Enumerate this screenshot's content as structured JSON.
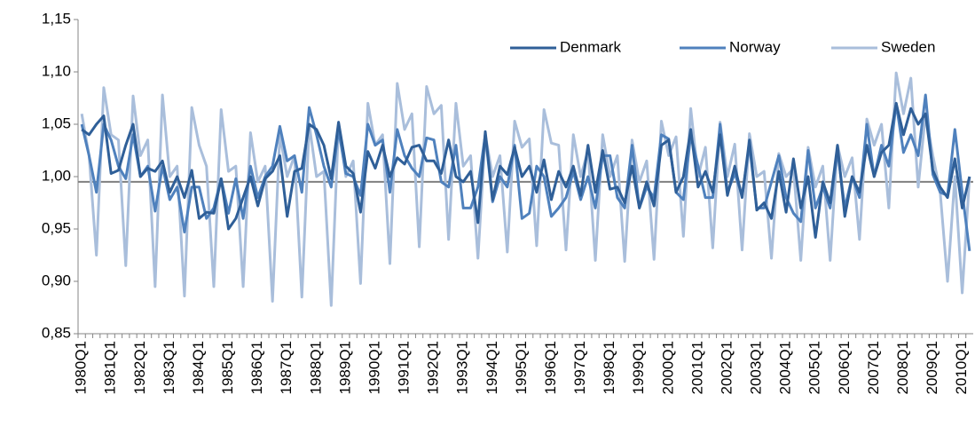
{
  "chart_data": {
    "type": "line",
    "categories": [
      "1980Q1",
      null,
      null,
      null,
      "1981Q1",
      null,
      null,
      null,
      "1982Q1",
      null,
      null,
      null,
      "1983Q1",
      null,
      null,
      null,
      "1984Q1",
      null,
      null,
      null,
      "1985Q1",
      null,
      null,
      null,
      "1986Q1",
      null,
      null,
      null,
      "1987Q1",
      null,
      null,
      null,
      "1988Q1",
      null,
      null,
      null,
      "1989Q1",
      null,
      null,
      null,
      "1990Q1",
      null,
      null,
      null,
      "1991Q1",
      null,
      null,
      null,
      "1992Q1",
      null,
      null,
      null,
      "1993Q1",
      null,
      null,
      null,
      "1994Q1",
      null,
      null,
      null,
      "1995Q1",
      null,
      null,
      null,
      "1996Q1",
      null,
      null,
      null,
      "1997Q1",
      null,
      null,
      null,
      "1998Q1",
      null,
      null,
      null,
      "1999Q1",
      null,
      null,
      null,
      "2000Q1",
      null,
      null,
      null,
      "2001Q1",
      null,
      null,
      null,
      "2002Q1",
      null,
      null,
      null,
      "2003Q1",
      null,
      null,
      null,
      "2004Q1",
      null,
      null,
      null,
      "2005Q1",
      null,
      null,
      null,
      "2006Q1",
      null,
      null,
      null,
      "2007Q1",
      null,
      null,
      null,
      "2008Q1",
      null,
      null,
      null,
      "2009Q1",
      null,
      null,
      null,
      "2010Q1",
      null
    ],
    "series": [
      {
        "name": "Denmark",
        "color": "#2f5f98",
        "values": [
          1.045,
          1.04,
          1.05,
          1.058,
          1.003,
          1.006,
          1.03,
          1.05,
          1.0,
          1.008,
          1.005,
          1.015,
          0.985,
          1.0,
          0.98,
          1.006,
          0.96,
          0.966,
          0.965,
          0.998,
          0.95,
          0.96,
          0.98,
          1.0,
          0.972,
          0.998,
          1.005,
          1.02,
          0.962,
          1.005,
          1.008,
          1.05,
          1.045,
          1.03,
          0.998,
          1.052,
          1.01,
          1.003,
          0.966,
          1.024,
          1.008,
          1.03,
          1.0,
          1.018,
          1.012,
          1.028,
          1.03,
          1.015,
          1.015,
          1.003,
          1.035,
          1.0,
          0.995,
          1.005,
          0.956,
          1.043,
          0.978,
          1.01,
          1.002,
          1.028,
          1.0,
          1.01,
          0.985,
          1.016,
          0.978,
          1.005,
          0.99,
          1.01,
          0.982,
          1.03,
          0.985,
          1.025,
          0.988,
          0.99,
          0.975,
          1.01,
          0.97,
          0.995,
          0.972,
          1.03,
          1.035,
          0.985,
          1.0,
          1.045,
          0.99,
          1.005,
          0.985,
          1.04,
          0.982,
          1.01,
          0.98,
          1.035,
          0.968,
          0.975,
          0.96,
          1.005,
          0.966,
          1.017,
          0.97,
          1.0,
          0.942,
          0.995,
          0.975,
          1.03,
          0.962,
          1.0,
          0.985,
          1.03,
          1.0,
          1.023,
          1.03,
          1.07,
          1.04,
          1.065,
          1.05,
          1.06,
          1.006,
          0.99,
          0.98,
          1.017,
          0.97,
          1.0
        ]
      },
      {
        "name": "Norway",
        "color": "#4f81bd",
        "values": [
          1.05,
          1.02,
          0.985,
          1.05,
          1.035,
          1.01,
          0.998,
          1.04,
          1.0,
          1.01,
          0.967,
          1.01,
          0.978,
          0.99,
          0.947,
          0.99,
          0.99,
          0.96,
          0.97,
          0.998,
          0.965,
          0.998,
          0.96,
          1.01,
          0.98,
          1.0,
          1.01,
          1.048,
          1.015,
          1.02,
          0.985,
          1.066,
          1.04,
          1.01,
          0.99,
          1.045,
          1.003,
          1.0,
          0.982,
          1.05,
          1.03,
          1.035,
          0.985,
          1.045,
          1.02,
          1.008,
          1.0,
          1.037,
          1.035,
          0.995,
          0.99,
          1.03,
          0.97,
          0.97,
          0.99,
          1.04,
          0.976,
          1.0,
          0.99,
          1.03,
          0.96,
          0.965,
          1.01,
          1.0,
          0.962,
          0.97,
          0.98,
          1.005,
          0.978,
          1.0,
          0.97,
          1.02,
          1.02,
          0.98,
          0.97,
          1.03,
          0.97,
          0.99,
          0.98,
          1.04,
          1.036,
          0.985,
          0.978,
          1.04,
          1.01,
          0.98,
          0.98,
          1.05,
          0.985,
          1.003,
          0.982,
          1.03,
          0.97,
          0.97,
          0.995,
          1.02,
          0.98,
          0.965,
          0.957,
          1.025,
          0.97,
          0.99,
          0.97,
          1.025,
          0.97,
          1.0,
          0.98,
          1.05,
          1.0,
          1.03,
          1.01,
          1.07,
          1.023,
          1.04,
          1.02,
          1.078,
          1.002,
          0.985,
          0.982,
          1.045,
          0.985,
          0.929
        ]
      },
      {
        "name": "Sweden",
        "color": "#a9bedb",
        "values": [
          1.06,
          1.02,
          0.925,
          1.085,
          1.04,
          1.035,
          0.915,
          1.077,
          1.02,
          1.035,
          0.895,
          1.078,
          1.0,
          1.01,
          0.886,
          1.066,
          1.03,
          1.01,
          0.895,
          1.064,
          1.005,
          1.01,
          0.895,
          1.042,
          0.995,
          1.01,
          0.881,
          1.04,
          1.0,
          1.02,
          0.885,
          1.05,
          1.0,
          1.005,
          0.877,
          1.05,
          1.0,
          1.015,
          0.898,
          1.07,
          1.03,
          1.04,
          0.917,
          1.089,
          1.045,
          1.06,
          0.933,
          1.086,
          1.06,
          1.068,
          0.94,
          1.07,
          1.01,
          1.02,
          0.922,
          1.04,
          1.0,
          1.02,
          0.928,
          1.053,
          1.028,
          1.036,
          0.934,
          1.064,
          1.032,
          1.03,
          0.93,
          1.04,
          1.0,
          1.025,
          0.92,
          1.04,
          1.0,
          1.02,
          0.919,
          1.035,
          0.995,
          1.015,
          0.921,
          1.053,
          1.02,
          1.038,
          0.943,
          1.065,
          1.0,
          1.028,
          0.932,
          1.052,
          1.0,
          1.031,
          0.93,
          1.041,
          1.0,
          1.005,
          0.922,
          1.022,
          1.0,
          1.008,
          0.92,
          1.028,
          0.99,
          1.01,
          0.92,
          1.03,
          1.0,
          1.018,
          0.94,
          1.055,
          1.03,
          1.05,
          0.97,
          1.099,
          1.06,
          1.094,
          0.99,
          1.06,
          1.02,
          0.985,
          0.9,
          1.0,
          0.889,
          1.0
        ]
      }
    ],
    "ylim": [
      0.85,
      1.15
    ],
    "yticks": [
      {
        "value": 0.85,
        "label": "0,85"
      },
      {
        "value": 0.9,
        "label": "0,90"
      },
      {
        "value": 0.95,
        "label": "0,95"
      },
      {
        "value": 1.0,
        "label": "1,00"
      },
      {
        "value": 1.05,
        "label": "1,05"
      },
      {
        "value": 1.1,
        "label": "1,10"
      },
      {
        "value": 1.15,
        "label": "1,15"
      }
    ],
    "reference_line": 0.995,
    "legend": "top-right"
  }
}
